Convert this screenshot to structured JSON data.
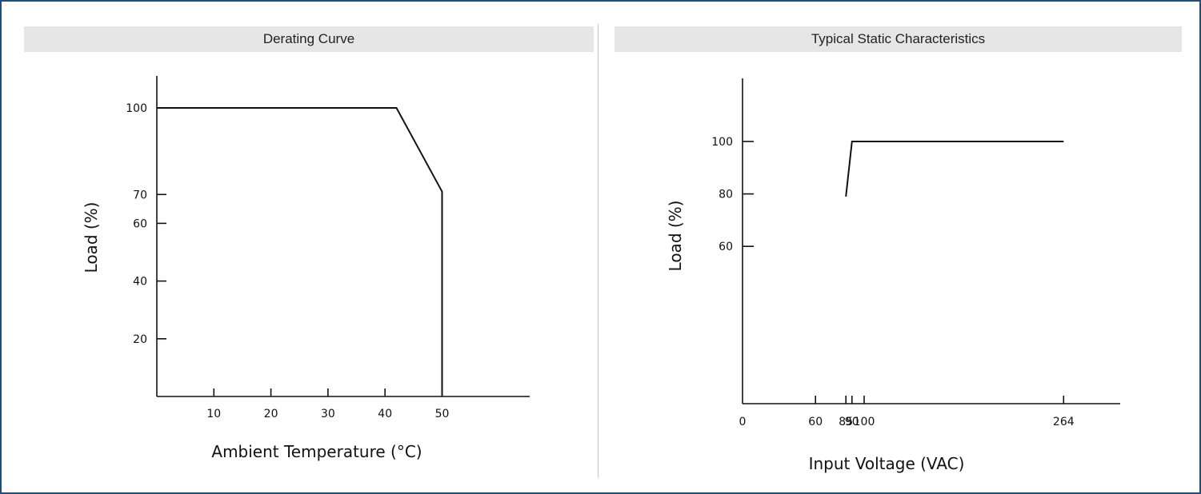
{
  "chart_data": [
    {
      "type": "line",
      "title": "Derating Curve",
      "xlabel": "Ambient Temperature (°C)",
      "ylabel": "Load (%)",
      "xlim": [
        0,
        66
      ],
      "ylim": [
        0,
        110
      ],
      "x_ticks": [
        10,
        20,
        30,
        40,
        50
      ],
      "y_ticks": [
        20,
        40,
        60,
        70,
        100
      ],
      "x_tick_labels": [
        "10",
        "20",
        "30",
        "40",
        "50"
      ],
      "y_tick_labels": [
        "20",
        "40",
        "60",
        "70",
        "100"
      ],
      "series": [
        {
          "x": [
            0,
            42,
            50,
            50
          ],
          "y": [
            100,
            100,
            71,
            0
          ]
        }
      ],
      "grid": false
    },
    {
      "type": "line",
      "title": "Typical Static Characteristics",
      "xlabel": "Input Voltage (VAC)",
      "ylabel": "Load (%)",
      "xlim": [
        0,
        305
      ],
      "ylim": [
        0,
        115
      ],
      "x_ticks": [
        0,
        60,
        85,
        90,
        100,
        264
      ],
      "x_tick_labels": [
        "0",
        "60",
        "85",
        "90",
        "100",
        "264"
      ],
      "y_ticks": [
        60,
        80,
        100
      ],
      "y_tick_labels": [
        "60",
        "80",
        "100"
      ],
      "series": [
        {
          "x": [
            85,
            90,
            264
          ],
          "y": [
            79,
            100,
            100
          ]
        }
      ],
      "grid": false
    }
  ]
}
